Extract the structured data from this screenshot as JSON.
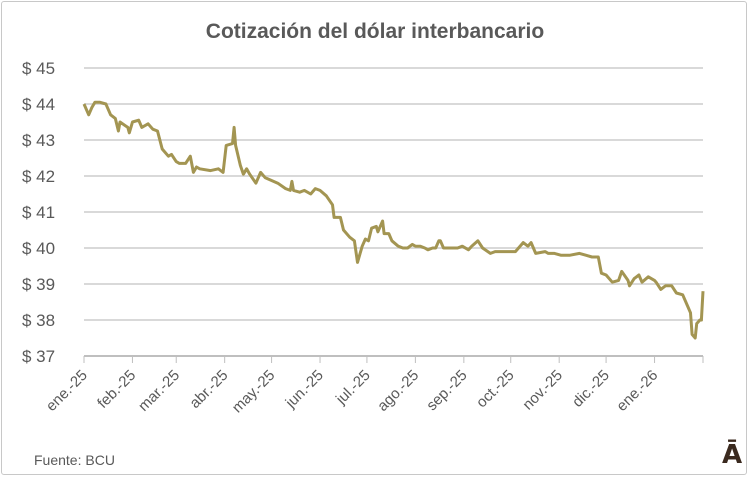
{
  "chart_data": {
    "type": "line",
    "title": "Cotización del dólar interbancario",
    "xlabel": "",
    "ylabel": "",
    "x_units": "days since ene. 2025",
    "xlim": [
      0,
      396
    ],
    "ylim": [
      37,
      45
    ],
    "yticks": [
      37,
      38,
      39,
      40,
      41,
      42,
      43,
      44,
      45
    ],
    "ytick_labels": [
      "$ 37",
      "$ 38",
      "$ 39",
      "$ 40",
      "$ 41",
      "$ 42",
      "$ 43",
      "$ 44",
      "$ 45"
    ],
    "xticks": [
      0,
      31,
      59,
      90,
      120,
      151,
      181,
      212,
      243,
      273,
      304,
      334,
      365
    ],
    "xtick_labels": [
      "ene.-25",
      "feb.-25",
      "mar.-25",
      "abr.-25",
      "may.-25",
      "jun.-25",
      "jul.-25",
      "ago.-25",
      "sep.-25",
      "oct.-25",
      "nov.-25",
      "dic.-25",
      "ene.-26"
    ],
    "grid": true,
    "series": [
      {
        "name": "Dólar interbancario",
        "color": "#A39552",
        "x": [
          0,
          3,
          5,
          7,
          10,
          14,
          17,
          20,
          22,
          23,
          28,
          29,
          31,
          35,
          37,
          41,
          44,
          47,
          50,
          54,
          56,
          59,
          61,
          65,
          68,
          70,
          72,
          74,
          81,
          86,
          89,
          91,
          95,
          96,
          97,
          100,
          102,
          104,
          106,
          110,
          113,
          116,
          124,
          129,
          132,
          133,
          134,
          138,
          141,
          145,
          148,
          151,
          155,
          159,
          160,
          164,
          166,
          170,
          173,
          175,
          178,
          180,
          182,
          184,
          187,
          188,
          191,
          192,
          195,
          197,
          201,
          204,
          207,
          210,
          212,
          215,
          218,
          220,
          223,
          225,
          227,
          228,
          230,
          234,
          239,
          242,
          246,
          248,
          252,
          255,
          260,
          263,
          269,
          276,
          281,
          284,
          286,
          289,
          295,
          297,
          301,
          305,
          311,
          317,
          321,
          325,
          329,
          331,
          334,
          338,
          342,
          344,
          348,
          349,
          352,
          355,
          357,
          361,
          365,
          366,
          369,
          372,
          376,
          379,
          383,
          386,
          388,
          389,
          391,
          392,
          394,
          395,
          396
        ],
        "y": [
          44.0,
          43.7,
          43.9,
          44.05,
          44.05,
          44.0,
          43.7,
          43.6,
          43.25,
          43.5,
          43.35,
          43.2,
          43.5,
          43.55,
          43.35,
          43.45,
          43.3,
          43.25,
          42.75,
          42.55,
          42.6,
          42.4,
          42.35,
          42.35,
          42.55,
          42.1,
          42.25,
          42.2,
          42.15,
          42.2,
          42.1,
          42.85,
          42.9,
          43.35,
          42.85,
          42.3,
          42.05,
          42.2,
          42.05,
          41.8,
          42.1,
          41.95,
          41.8,
          41.65,
          41.6,
          41.85,
          41.6,
          41.55,
          41.6,
          41.5,
          41.65,
          41.6,
          41.45,
          41.2,
          40.85,
          40.85,
          40.5,
          40.3,
          40.2,
          39.6,
          40.05,
          40.25,
          40.2,
          40.55,
          40.6,
          40.45,
          40.75,
          40.4,
          40.4,
          40.2,
          40.05,
          40.0,
          40.0,
          40.1,
          40.05,
          40.05,
          40.0,
          39.95,
          40.0,
          40.0,
          40.2,
          40.2,
          40.0,
          40.0,
          40.0,
          40.05,
          39.95,
          40.05,
          40.2,
          40.0,
          39.85,
          39.9,
          39.9,
          39.9,
          40.15,
          40.05,
          40.15,
          39.85,
          39.9,
          39.85,
          39.85,
          39.8,
          39.8,
          39.85,
          39.8,
          39.75,
          39.75,
          39.3,
          39.25,
          39.05,
          39.1,
          39.35,
          39.1,
          38.95,
          39.15,
          39.25,
          39.05,
          39.2,
          39.1,
          39.05,
          38.85,
          38.95,
          38.95,
          38.75,
          38.7,
          38.4,
          38.2,
          37.6,
          37.5,
          37.9,
          38.0,
          38.0,
          38.8
        ]
      }
    ],
    "legend": "none",
    "annotations": [
      "Fuente: BCU"
    ]
  },
  "source": "Fuente: BCU",
  "logo_text": "Ā"
}
